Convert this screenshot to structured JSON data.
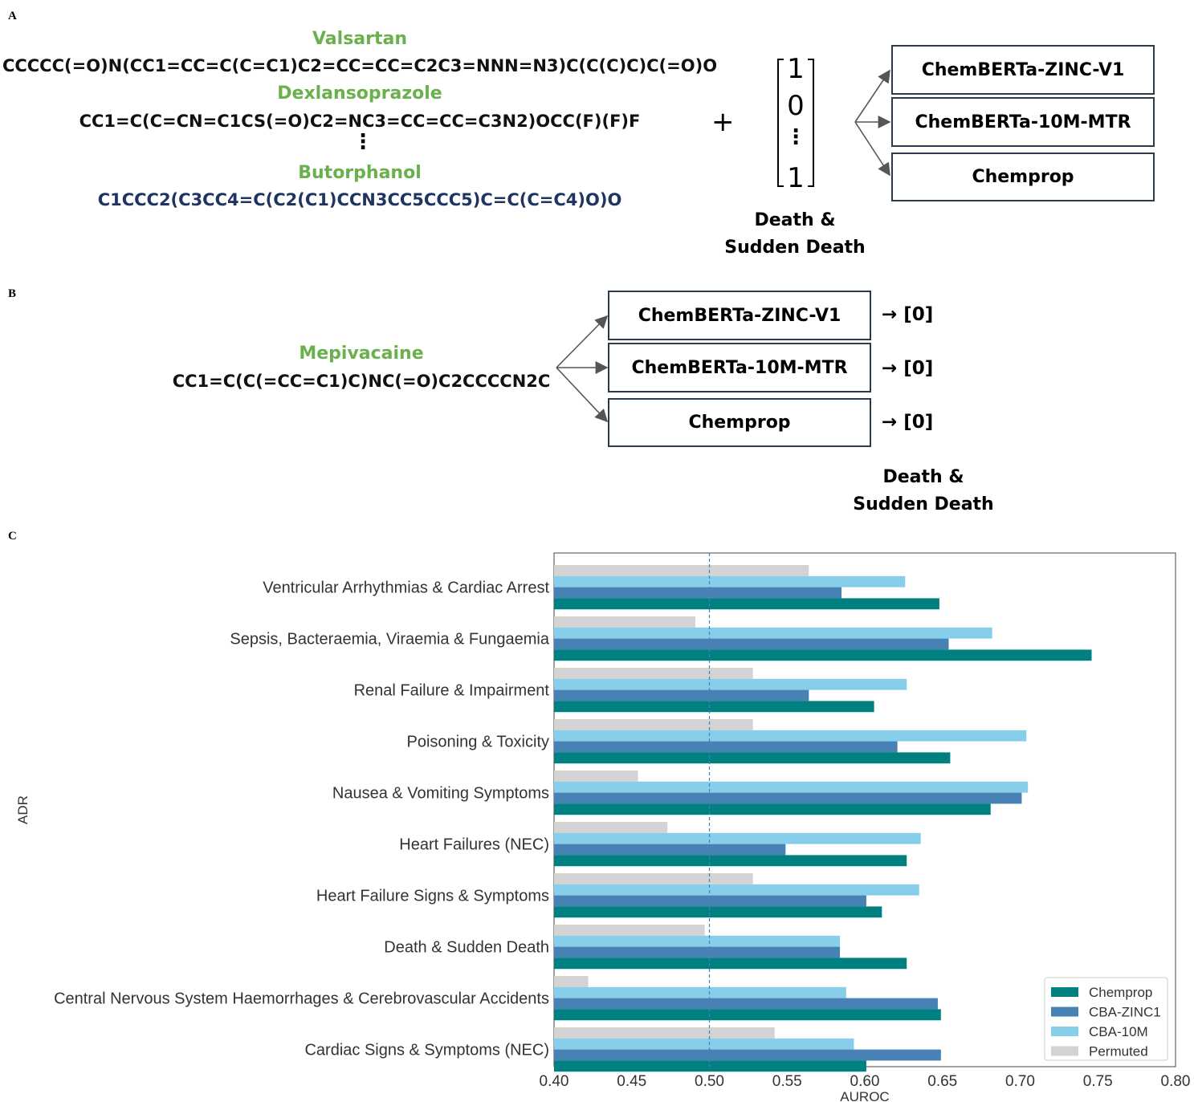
{
  "panel_a": {
    "letter": "A",
    "drugs": [
      {
        "name": "Valsartan",
        "smiles": "CCCCC(=O)N(CC1=CC=C(C=C1)C2=CC=CC=C2C3=NNN=N3)C(C(C)C)C(=O)O"
      },
      {
        "name": "Dexlansoprazole",
        "smiles": "CC1=C(C=CN=C1CS(=O)C2=NC3=CC=CC=C3N2)OCC(F)(F)F"
      },
      {
        "name": "Butorphanol",
        "smiles": "C1CCC2(C3CC4=C(C2(C1)CCN3CC5CCC5)C=C(C=C4)O)O"
      }
    ],
    "ellipsis": "⋮",
    "plus": "+",
    "vector": [
      "1",
      "0",
      "⋮",
      "1"
    ],
    "target_label": [
      "Death &",
      "Sudden Death"
    ],
    "models": [
      "ChemBERTa-ZINC-V1",
      "ChemBERTa-10M-MTR",
      "Chemprop"
    ]
  },
  "panel_b": {
    "letter": "B",
    "drug": {
      "name": "Mepivacaine",
      "smiles": "CC1=C(C(=CC=C1)C)NC(=O)C2CCCCN2C"
    },
    "models": [
      "ChemBERTa-ZINC-V1",
      "ChemBERTa-10M-MTR",
      "Chemprop"
    ],
    "predictions": [
      "→ [0]",
      "→ [0]",
      "→ [0]"
    ],
    "target_label": [
      "Death &",
      "Sudden Death"
    ]
  },
  "panel_c": {
    "letter": "C"
  },
  "chart_data": {
    "type": "bar",
    "orientation": "horizontal",
    "xlabel": "AUROC",
    "ylabel": "ADR",
    "xlim": [
      0.4,
      0.8
    ],
    "xticks": [
      "0.40",
      "0.45",
      "0.50",
      "0.55",
      "0.60",
      "0.65",
      "0.70",
      "0.75",
      "0.80"
    ],
    "reference_line": 0.5,
    "legend_position": "bottom-right",
    "categories": [
      "Ventricular Arrhythmias & Cardiac Arrest",
      "Sepsis, Bacteraemia, Viraemia & Fungaemia",
      "Renal Failure & Impairment",
      "Poisoning & Toxicity",
      "Nausea & Vomiting Symptoms",
      "Heart Failures (NEC)",
      "Heart Failure Signs & Symptoms",
      "Death & Sudden Death",
      "Central Nervous System Haemorrhages & Cerebrovascular Accidents",
      "Cardiac Signs & Symptoms (NEC)"
    ],
    "series": [
      {
        "name": "Permuted",
        "color": "#d3d3d3",
        "values": [
          0.564,
          0.491,
          0.528,
          0.528,
          0.454,
          0.473,
          0.528,
          0.497,
          0.422,
          0.542
        ]
      },
      {
        "name": "CBA-10M",
        "color": "#87ceeb",
        "values": [
          0.626,
          0.682,
          0.627,
          0.704,
          0.705,
          0.636,
          0.635,
          0.584,
          0.588,
          0.593
        ]
      },
      {
        "name": "CBA-ZINC1",
        "color": "#4682b4",
        "values": [
          0.585,
          0.654,
          0.564,
          0.621,
          0.701,
          0.549,
          0.601,
          0.584,
          0.647,
          0.649
        ]
      },
      {
        "name": "Chemprop",
        "color": "#008080",
        "values": [
          0.648,
          0.746,
          0.606,
          0.655,
          0.681,
          0.627,
          0.611,
          0.627,
          0.649,
          0.601
        ]
      }
    ],
    "legend_order": [
      "Chemprop",
      "CBA-ZINC1",
      "CBA-10M",
      "Permuted"
    ]
  }
}
